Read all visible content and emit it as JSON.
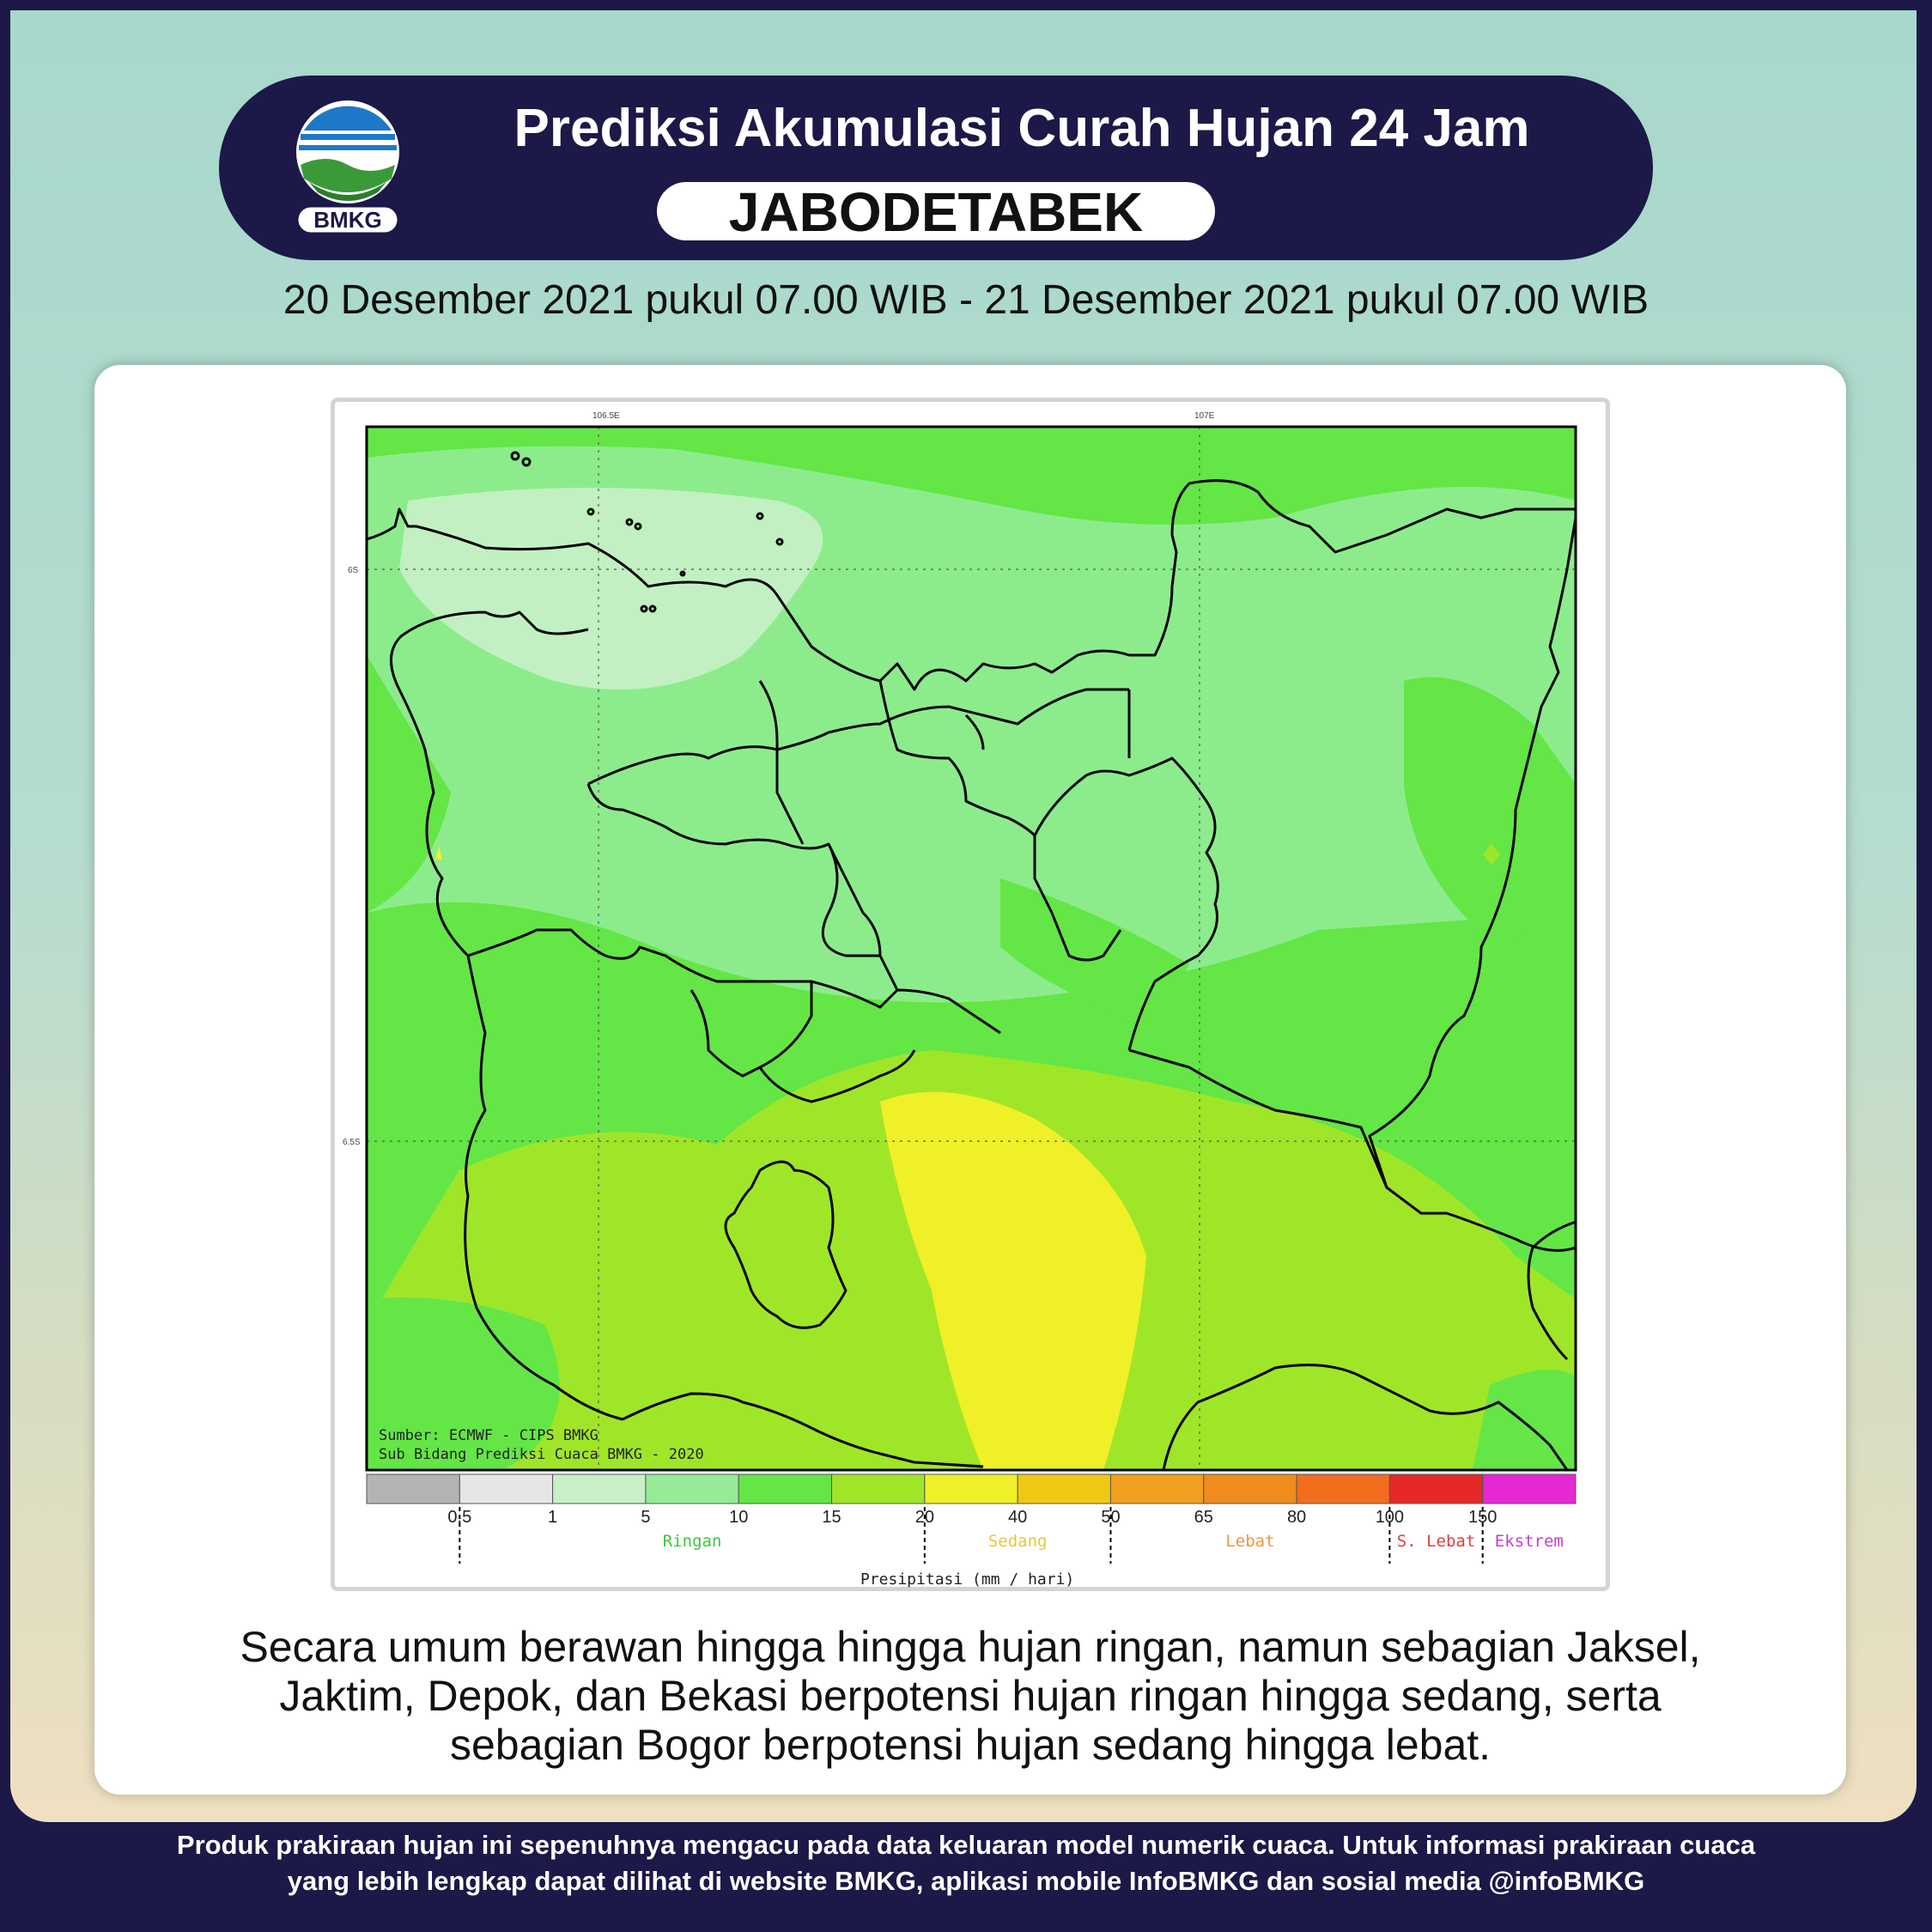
{
  "header": {
    "logo_text": "BMKG",
    "title": "Prediksi Akumulasi Curah Hujan 24 Jam",
    "region": "JABODETABEK",
    "date_range": "20 Desember 2021 pukul 07.00 WIB - 21 Desember 2021 pukul 07.00 WIB"
  },
  "map": {
    "lon_labels": [
      "106.5E",
      "107E"
    ],
    "lat_labels": [
      "6S",
      "6.5S"
    ],
    "source_line1": "Sumber: ECMWF - CIPS BMKG",
    "source_line2": "Sub Bidang Prediksi Cuaca BMKG - 2020",
    "legend": {
      "colors": [
        "#b4b4b4",
        "#e6e6e6",
        "#c8f0c8",
        "#96eb96",
        "#64e646",
        "#a0e628",
        "#f0f028",
        "#f0c814",
        "#f0a01e",
        "#f08c1e",
        "#f06e1e",
        "#e62828",
        "#e628d2"
      ],
      "ticks": [
        "0.5",
        "1",
        "5",
        "10",
        "15",
        "20",
        "40",
        "50",
        "65",
        "80",
        "100",
        "150"
      ],
      "categories": [
        {
          "label": "Ringan",
          "color": "#3cc83c"
        },
        {
          "label": "Sedang",
          "color": "#e6c83c"
        },
        {
          "label": "Lebat",
          "color": "#f0963c"
        },
        {
          "label": "S. Lebat",
          "color": "#e63c3c"
        },
        {
          "label": "Ekstrem",
          "color": "#c83cc8"
        }
      ],
      "axis_label": "Presipitasi (mm / hari)"
    }
  },
  "summary": {
    "lines": [
      "Secara umum berawan hingga hingga hujan ringan, namun sebagian Jaksel,",
      "Jaktim, Depok, dan Bekasi berpotensi hujan ringan hingga sedang, serta",
      "sebagian Bogor berpotensi hujan sedang hingga lebat."
    ]
  },
  "footer": {
    "line1": "Produk prakiraan hujan ini sepenuhnya mengacu pada data keluaran model numerik cuaca. Untuk informasi prakiraan cuaca",
    "line2": "yang lebih lengkap dapat dilihat di website BMKG, aplikasi mobile InfoBMKG dan sosial media @infoBMKG"
  }
}
